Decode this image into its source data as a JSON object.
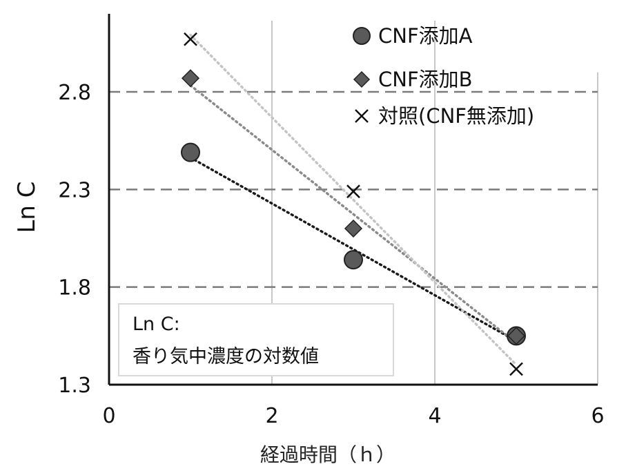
{
  "chart_data": {
    "type": "scatter",
    "xlabel": "経過時間（ｈ）",
    "ylabel": "Ln C",
    "xlim": [
      0,
      6
    ],
    "ylim": [
      1.3,
      3.2
    ],
    "x_ticks": [
      "0",
      "2",
      "4",
      "6"
    ],
    "y_ticks": [
      "1.3",
      "1.8",
      "2.3",
      "2.8"
    ],
    "grid": "dashed horizontal at y ticks, light vertical lines",
    "legend_position": "top-right",
    "series": [
      {
        "name": "CNF添加A",
        "marker": "circle",
        "color": "#5a5a5a",
        "trend_color": "#1a1a1a",
        "x": [
          1,
          3,
          5
        ],
        "y": [
          2.49,
          1.94,
          1.55
        ]
      },
      {
        "name": "CNF添加B",
        "marker": "diamond",
        "color": "#5a5a5a",
        "trend_color": "#8a8a8a",
        "x": [
          1,
          3,
          5
        ],
        "y": [
          2.87,
          2.1,
          1.55
        ]
      },
      {
        "name": "対照(CNF無添加)",
        "marker": "x",
        "color": "#111111",
        "trend_color": "#c4c4c4",
        "x": [
          1,
          3,
          5
        ],
        "y": [
          3.07,
          2.29,
          1.38
        ]
      }
    ],
    "note_lines": [
      "Ln C:",
      "香り気中濃度の対数値"
    ]
  }
}
